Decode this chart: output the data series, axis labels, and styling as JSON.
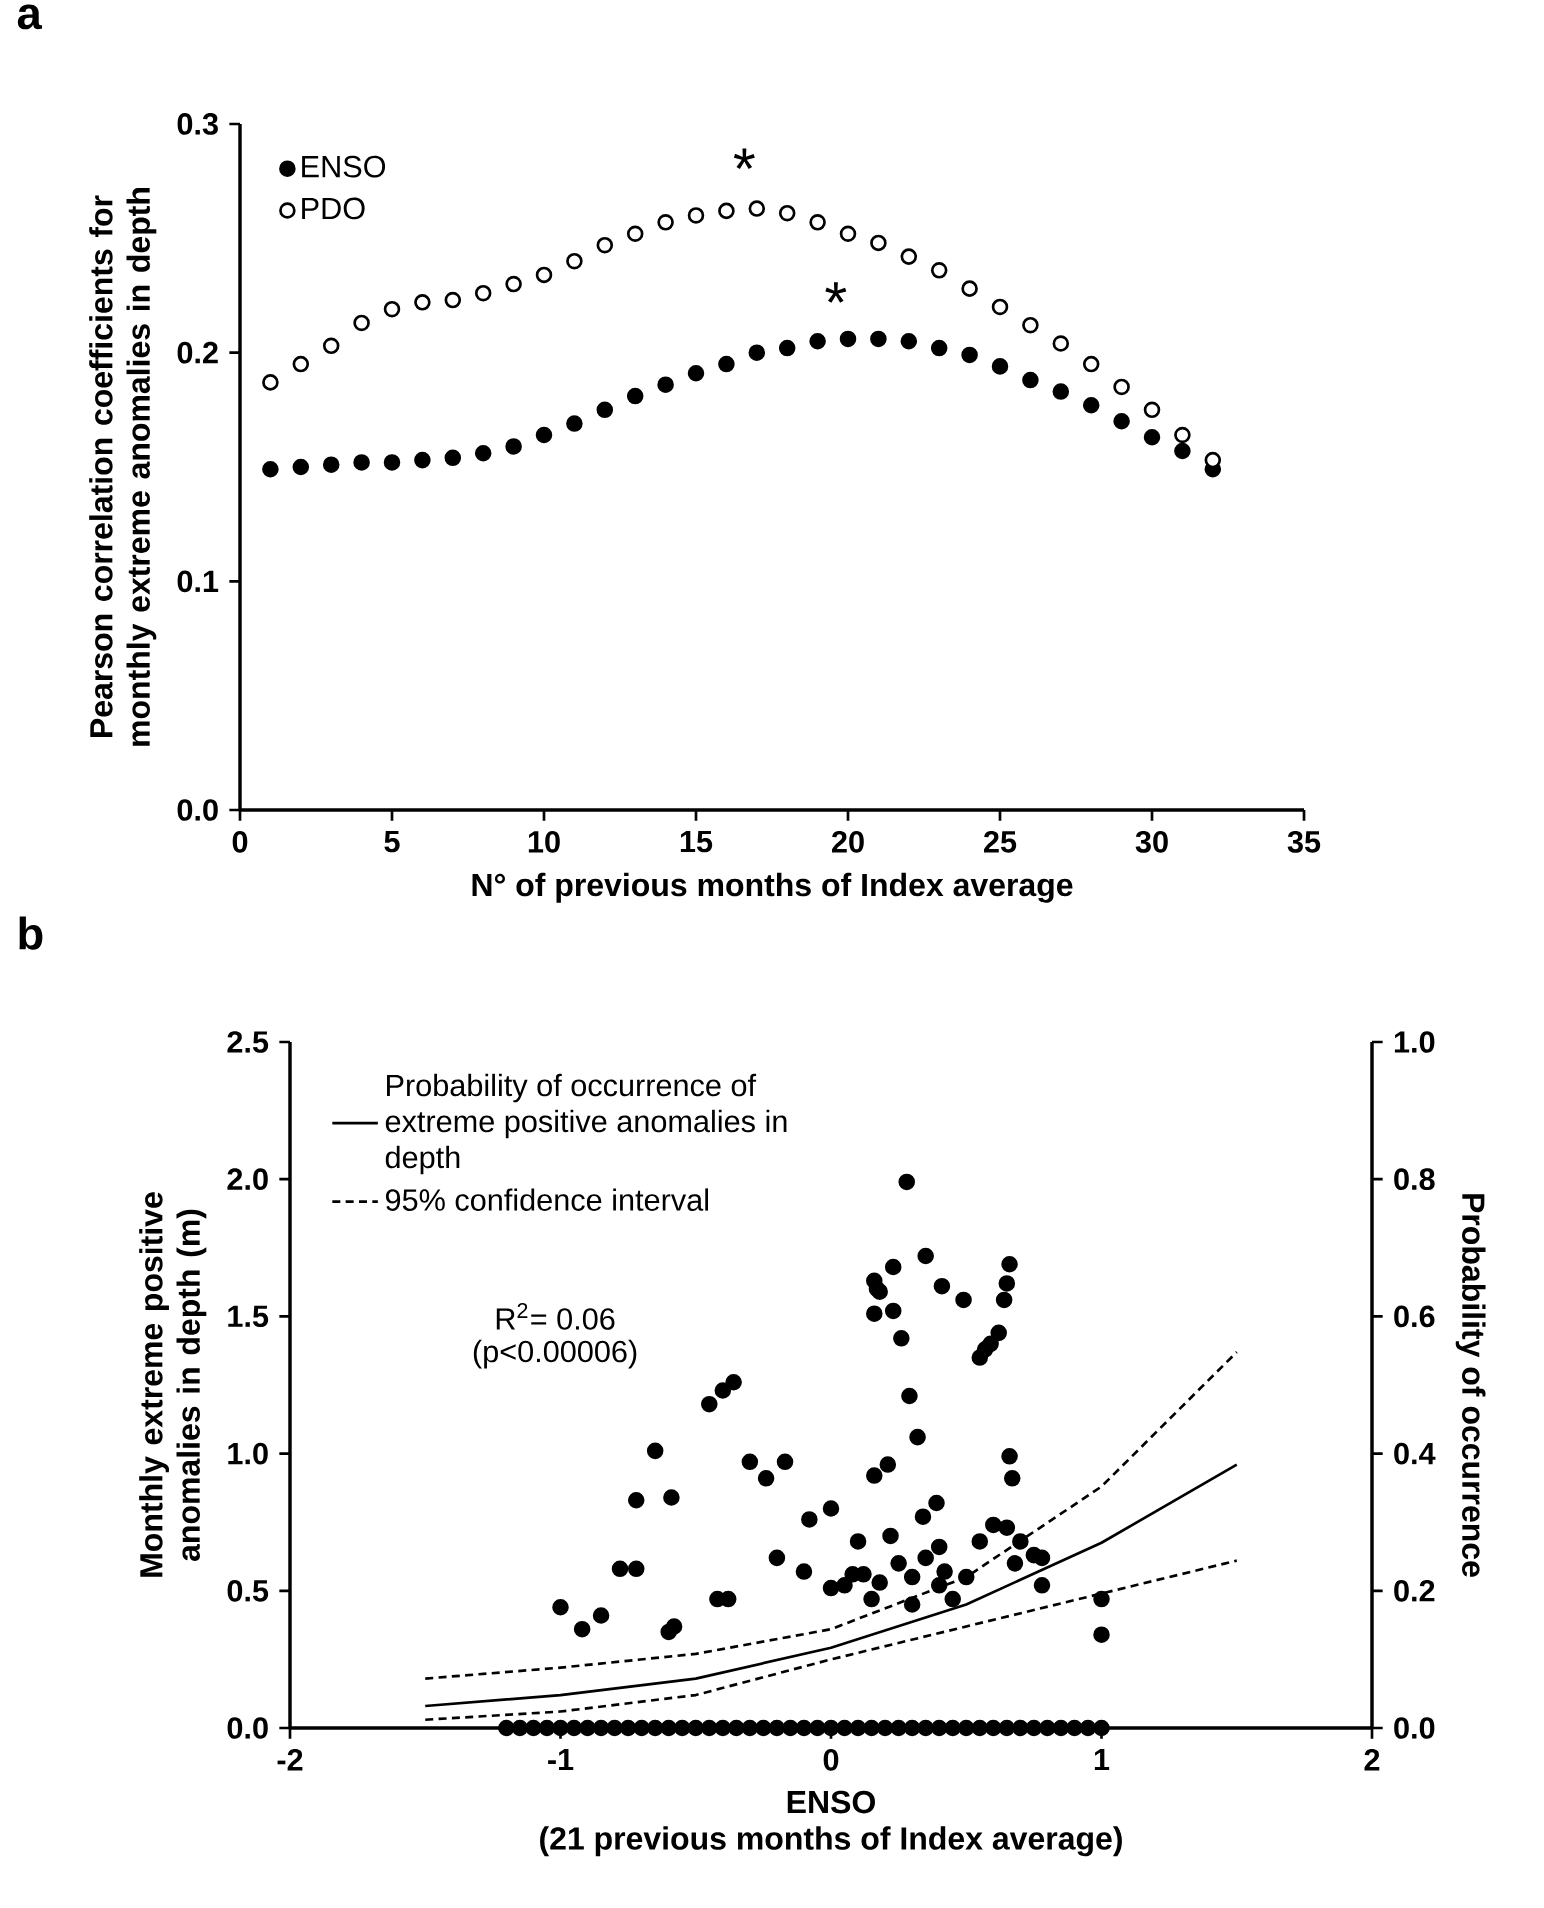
{
  "chart_data": [
    {
      "type": "scatter",
      "title": "a",
      "xlabel": "N° of previous months of Index average",
      "ylabel": "Pearson correlation coefficients for monthly extreme anomalies in depth",
      "xlim": [
        0,
        35
      ],
      "ylim": [
        0,
        0.3
      ],
      "xticks": [
        0,
        5,
        10,
        15,
        20,
        25,
        30,
        35
      ],
      "yticks": [
        {
          "value": 0,
          "label": "0.0"
        },
        0.1,
        0.2,
        0.3
      ],
      "legend": "top left",
      "x": [
        1,
        2,
        3,
        4,
        5,
        6,
        7,
        8,
        9,
        10,
        11,
        12,
        13,
        14,
        15,
        16,
        17,
        18,
        19,
        20,
        21,
        22,
        23,
        24,
        25,
        26,
        27,
        28,
        29,
        30,
        31,
        32
      ],
      "series": [
        {
          "name": "ENSO",
          "color": "#000000",
          "marker": "circle",
          "values": [
            0.149,
            0.15,
            0.151,
            0.152,
            0.152,
            0.153,
            0.154,
            0.156,
            0.159,
            0.164,
            0.169,
            0.175,
            0.181,
            0.186,
            0.191,
            0.195,
            0.2,
            0.202,
            0.205,
            0.206,
            0.206,
            0.205,
            0.202,
            0.199,
            0.194,
            0.188,
            0.183,
            0.177,
            0.17,
            0.163,
            0.157,
            0.149
          ]
        },
        {
          "name": "PDO",
          "color": "#ffffff",
          "marker": "circle",
          "values": [
            0.187,
            0.195,
            0.203,
            0.213,
            0.219,
            0.222,
            0.223,
            0.226,
            0.23,
            0.234,
            0.24,
            0.247,
            0.252,
            0.257,
            0.26,
            0.262,
            0.263,
            0.261,
            0.257,
            0.252,
            0.248,
            0.242,
            0.236,
            0.228,
            0.22,
            0.212,
            0.204,
            0.195,
            0.185,
            0.175,
            0.164,
            0.153
          ]
        }
      ],
      "annotations": [
        "*",
        "*"
      ]
    },
    {
      "type": "scatter",
      "title": "b",
      "xlabel": "ENSO",
      "ylabel": "Monthly extreme positive anomalies in depth (m)",
      "y2label": "Probability of occurrence",
      "xlim": [
        -2,
        2
      ],
      "ylim": [
        0,
        2.5
      ],
      "y2lim": [
        0,
        1
      ],
      "xticks": [
        -2,
        -1,
        0,
        1,
        2
      ],
      "yticks": [
        {
          "value": 0,
          "label": "0.0"
        },
        0.5,
        {
          "value": 1,
          "label": "1.0"
        },
        1.5,
        {
          "value": 2,
          "label": "2.0"
        },
        2.5
      ],
      "y2ticks": [
        {
          "value": 0,
          "label": "0.0"
        },
        0.2,
        0.4,
        0.6,
        0.8,
        {
          "value": 1,
          "label": "1.0"
        }
      ],
      "legend": "top left",
      "series": [
        {
          "type": "scatter",
          "color": "#000000",
          "marker": "circle",
          "x": [
            0.28,
            0.35,
            0.23,
            0.66,
            0.16,
            0.17,
            0.18,
            0.41,
            0.49,
            0.65,
            0.64,
            0.16,
            0.23,
            0.26,
            0.62,
            0.59,
            0.57,
            0.55,
            -0.45,
            -0.4,
            -0.36,
            0.29,
            0.32,
            -0.65,
            -0.3,
            -0.24,
            -0.17,
            0.16,
            0.21,
            0.66,
            0.67,
            -0.72,
            -0.59,
            0.39,
            0.34,
            0.0,
            -0.08,
            -1.0,
            -0.92,
            -0.85,
            -0.78,
            -0.72,
            -0.6,
            -0.58,
            -0.42,
            -0.38,
            -0.2,
            -0.1,
            0.0,
            0.05,
            0.1,
            0.12,
            0.18,
            0.22,
            0.25,
            0.3,
            0.3,
            0.35,
            0.4,
            0.4,
            0.42,
            0.45,
            0.55,
            0.6,
            0.65,
            0.7,
            0.75,
            0.78,
            0.78,
            0.68,
            1.0,
            1.0,
            0.08,
            0.15,
            0.5,
            -1.2,
            -1.15,
            -1.1,
            -1.05,
            -1.0,
            -0.95,
            -0.9,
            -0.85,
            -0.8,
            -0.75,
            -0.7,
            -0.65,
            -0.6,
            -0.55,
            -0.5,
            -0.45,
            -0.4,
            -0.35,
            -0.3,
            -0.25,
            -0.2,
            -0.15,
            -0.1,
            -0.05,
            0.0,
            0.05,
            0.1,
            0.15,
            0.2,
            0.25,
            0.3,
            0.35,
            0.4,
            0.45,
            0.5,
            0.55,
            0.6,
            0.65,
            0.7,
            0.75,
            0.8,
            0.85,
            0.9,
            0.95,
            1.0
          ],
          "values": [
            1.99,
            1.72,
            1.68,
            1.69,
            1.63,
            1.6,
            1.59,
            1.61,
            1.56,
            1.62,
            1.56,
            1.51,
            1.52,
            1.42,
            1.44,
            1.4,
            1.38,
            1.35,
            1.18,
            1.23,
            1.26,
            1.21,
            1.06,
            1.01,
            0.97,
            0.91,
            0.97,
            0.92,
            0.96,
            0.99,
            0.91,
            0.83,
            0.84,
            0.82,
            0.77,
            0.8,
            0.76,
            0.44,
            0.36,
            0.41,
            0.58,
            0.58,
            0.35,
            0.37,
            0.47,
            0.47,
            0.62,
            0.57,
            0.51,
            0.52,
            0.68,
            0.56,
            0.53,
            0.7,
            0.6,
            0.55,
            0.45,
            0.62,
            0.52,
            0.66,
            0.57,
            0.47,
            0.68,
            0.74,
            0.73,
            0.68,
            0.63,
            0.62,
            0.52,
            0.6,
            0.47,
            0.34,
            0.56,
            0.47,
            0.55,
            0,
            0,
            0,
            0,
            0,
            0,
            0,
            0,
            0,
            0,
            0,
            0,
            0,
            0,
            0,
            0,
            0,
            0,
            0,
            0,
            0,
            0,
            0,
            0,
            0,
            0,
            0,
            0,
            0,
            0,
            0,
            0,
            0,
            0,
            0,
            0,
            0,
            0,
            0,
            0,
            0,
            0,
            0,
            0,
            0
          ]
        },
        {
          "type": "line",
          "axis": "y2",
          "name": "Probability of occurrence of extreme positive anomalies in depth",
          "color": "#000000",
          "marker": "none",
          "line_style": "solid",
          "x": [
            -1.5,
            -1,
            -0.5,
            0,
            0.5,
            1,
            1.5
          ],
          "values": [
            0.032,
            0.048,
            0.072,
            0.117,
            0.18,
            0.27,
            0.384
          ]
        },
        {
          "type": "line",
          "axis": "y2",
          "name": "95% confidence interval",
          "color": "#000000",
          "marker": "none",
          "line_style": "dashed",
          "x": [
            -1.5,
            -1,
            -0.5,
            0,
            0.5,
            1,
            1.5
          ],
          "values": [
            0.072,
            0.088,
            0.108,
            0.144,
            0.22,
            0.352,
            0.548
          ]
        },
        {
          "type": "line",
          "axis": "y2",
          "color": "#000000",
          "marker": "none",
          "line_style": "dashed",
          "x": [
            -1.5,
            -1,
            -0.5,
            0,
            0.5,
            1,
            1.5
          ],
          "values": [
            0.012,
            0.024,
            0.048,
            0.1,
            0.148,
            0.196,
            0.244
          ]
        }
      ],
      "annotations": [
        "R$^{2}$= 0.06",
        "(p<0.00006)",
        "(21 previous months of Index average)"
      ]
    }
  ]
}
